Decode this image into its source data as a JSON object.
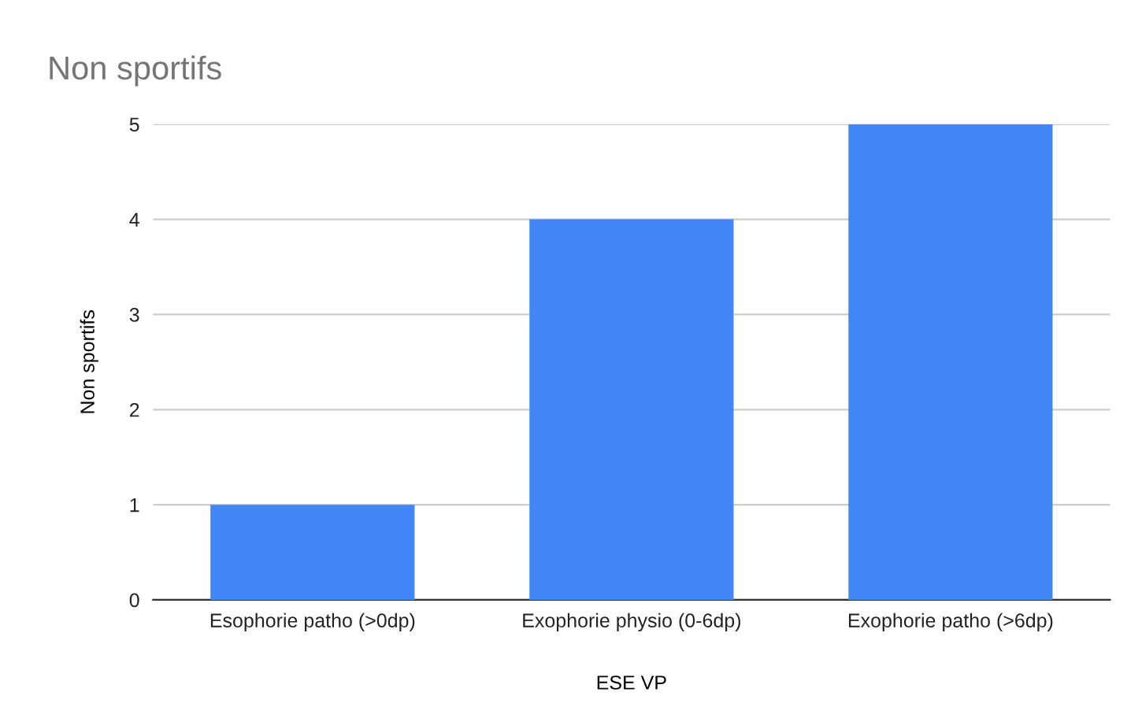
{
  "chart_data": {
    "type": "bar",
    "title": "Non sportifs",
    "xlabel": "ESE VP",
    "ylabel": "Non sportifs",
    "categories": [
      "Esophorie patho (>0dp)",
      "Exophorie physio (0-6dp)",
      "Exophorie patho (>6dp)"
    ],
    "series": [
      {
        "color": "#4285f4",
        "values": [
          1,
          4,
          5
        ]
      }
    ],
    "ylim": [
      0,
      5
    ],
    "yticks": [
      0,
      1,
      2,
      3,
      4,
      5
    ],
    "grid": "y",
    "legend": false
  }
}
